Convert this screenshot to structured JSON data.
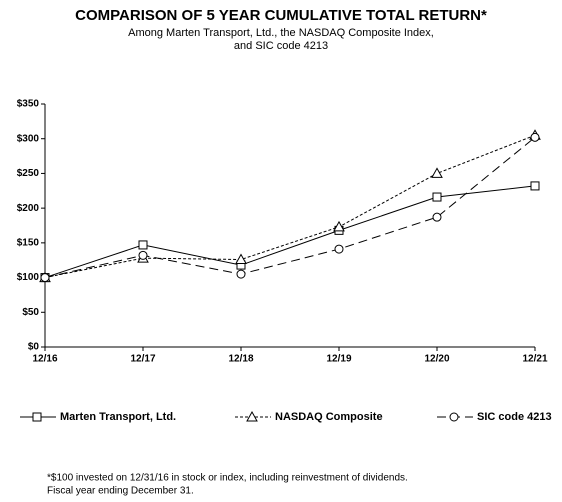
{
  "chart_data": {
    "type": "line",
    "title": "COMPARISON OF 5 YEAR CUMULATIVE TOTAL RETURN*",
    "subtitle": [
      "Among Marten Transport, Ltd., the NASDAQ Composite Index,",
      "and SIC code 4213"
    ],
    "categories": [
      "12/16",
      "12/17",
      "12/18",
      "12/19",
      "12/20",
      "12/21"
    ],
    "series": [
      {
        "name": "Marten Transport, Ltd.",
        "color": "#000000",
        "dash": "solid",
        "marker": "square",
        "values": [
          100,
          147,
          118,
          168,
          216,
          232
        ]
      },
      {
        "name": "NASDAQ Composite",
        "color": "#000000",
        "dash": "dotted",
        "marker": "triangle",
        "values": [
          100,
          128,
          126,
          173,
          250,
          305
        ]
      },
      {
        "name": "SIC code 4213",
        "color": "#000000",
        "dash": "dashed",
        "marker": "circle",
        "values": [
          100,
          132,
          105,
          141,
          187,
          302
        ]
      }
    ],
    "ylim": [
      0,
      350
    ],
    "yticks": [
      {
        "value": 0,
        "label": "$0"
      },
      {
        "value": 50,
        "label": "$50"
      },
      {
        "value": 100,
        "label": "$100"
      },
      {
        "value": 150,
        "label": "$150"
      },
      {
        "value": 200,
        "label": "$200"
      },
      {
        "value": 250,
        "label": "$250"
      },
      {
        "value": 300,
        "label": "$300"
      },
      {
        "value": 350,
        "label": "$350"
      }
    ],
    "grid": false,
    "legend": "bottom",
    "footnote": [
      "*$100 invested on 12/31/16 in stock or index, including reinvestment of dividends.",
      "Fiscal year ending December 31."
    ]
  }
}
